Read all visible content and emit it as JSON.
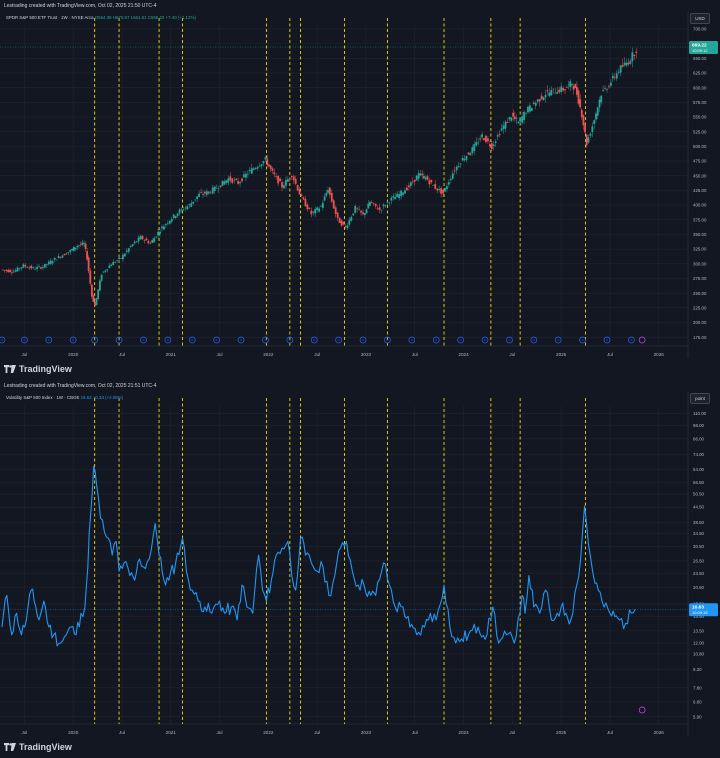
{
  "top_panel": {
    "header": "Lestrading created with TradingView.com, Oct 02, 2025 21:50 UTC-4",
    "legend": {
      "name": "SPDR S&P 500 ETF Trust · 1W · NYSE Arca",
      "ohlc": "O664.36 H670.57 L661.61 C669.22 +7.40 (+1.12%)"
    },
    "currency": "USD",
    "price_tag": "669.22",
    "price_time": "10:09:12"
  },
  "bottom_panel": {
    "header": "Lestrading created with TradingView.com, Oct 02, 2025 21:51 UTC-4",
    "legend": {
      "name": "Volatility S&P 500 Index · 1W · CBOE",
      "ohlc": "16.63 +0.34 (+2.09%)"
    },
    "unit": "point",
    "price_tag": "16.63",
    "price_time": "10:09:16"
  },
  "brand": "TradingView",
  "colors": {
    "up": "#26a69a",
    "down": "#ef5350",
    "vix": "#2196f3",
    "marker": "#f5d90a",
    "bg": "#131722"
  },
  "chart_data": [
    {
      "type": "candlestick",
      "title": "SPDR S&P 500 ETF Trust · 1W · NYSE Arca",
      "x_tick_labels": [
        "Jul",
        "2020",
        "Jul",
        "2021",
        "Jul",
        "2022",
        "Jul",
        "2023",
        "Jul",
        "2024",
        "Jul",
        "2025",
        "Jul",
        "2026"
      ],
      "x_range": [
        2019.25,
        2026.3
      ],
      "y_tick_labels": [
        "175.00",
        "200.00",
        "225.00",
        "250.00",
        "275.00",
        "300.00",
        "325.00",
        "350.00",
        "375.00",
        "400.00",
        "425.00",
        "450.00",
        "475.00",
        "500.00",
        "525.00",
        "550.00",
        "575.00",
        "600.00",
        "625.00",
        "650.00",
        "675.00",
        "700.00"
      ],
      "y_range": [
        160,
        705
      ],
      "series": [
        {
          "points": [
            [
              2019.27,
              290
            ],
            [
              2019.4,
              287
            ],
            [
              2019.5,
              297
            ],
            [
              2019.6,
              292
            ],
            [
              2019.7,
              295
            ],
            [
              2019.8,
              306
            ],
            [
              2019.9,
              315
            ],
            [
              2019.98,
              322
            ],
            [
              2020.05,
              331
            ],
            [
              2020.12,
              334
            ],
            [
              2020.15,
              310
            ],
            [
              2020.2,
              245
            ],
            [
              2020.23,
              228
            ],
            [
              2020.3,
              283
            ],
            [
              2020.4,
              300
            ],
            [
              2020.5,
              310
            ],
            [
              2020.6,
              330
            ],
            [
              2020.7,
              345
            ],
            [
              2020.8,
              335
            ],
            [
              2020.9,
              358
            ],
            [
              2020.98,
              372
            ],
            [
              2021.1,
              390
            ],
            [
              2021.2,
              400
            ],
            [
              2021.3,
              418
            ],
            [
              2021.4,
              422
            ],
            [
              2021.5,
              432
            ],
            [
              2021.6,
              445
            ],
            [
              2021.7,
              438
            ],
            [
              2021.8,
              455
            ],
            [
              2021.9,
              468
            ],
            [
              2021.98,
              477
            ],
            [
              2022.05,
              455
            ],
            [
              2022.15,
              432
            ],
            [
              2022.25,
              452
            ],
            [
              2022.35,
              412
            ],
            [
              2022.45,
              385
            ],
            [
              2022.55,
              398
            ],
            [
              2022.62,
              428
            ],
            [
              2022.72,
              375
            ],
            [
              2022.8,
              362
            ],
            [
              2022.9,
              395
            ],
            [
              2022.98,
              383
            ],
            [
              2023.05,
              405
            ],
            [
              2023.15,
              392
            ],
            [
              2023.25,
              408
            ],
            [
              2023.35,
              418
            ],
            [
              2023.45,
              432
            ],
            [
              2023.55,
              452
            ],
            [
              2023.62,
              446
            ],
            [
              2023.72,
              430
            ],
            [
              2023.8,
              420
            ],
            [
              2023.9,
              455
            ],
            [
              2023.98,
              475
            ],
            [
              2024.1,
              495
            ],
            [
              2024.2,
              518
            ],
            [
              2024.3,
              500
            ],
            [
              2024.4,
              530
            ],
            [
              2024.5,
              552
            ],
            [
              2024.57,
              540
            ],
            [
              2024.65,
              560
            ],
            [
              2024.75,
              575
            ],
            [
              2024.85,
              590
            ],
            [
              2024.95,
              595
            ],
            [
              2025.05,
              598
            ],
            [
              2025.12,
              608
            ],
            [
              2025.17,
              590
            ],
            [
              2025.22,
              555
            ],
            [
              2025.27,
              505
            ],
            [
              2025.33,
              535
            ],
            [
              2025.42,
              590
            ],
            [
              2025.5,
              605
            ],
            [
              2025.6,
              630
            ],
            [
              2025.7,
              645
            ],
            [
              2025.78,
              665
            ],
            [
              2025.76,
              669.22
            ]
          ]
        }
      ],
      "event_markers": [
        2020.22,
        2020.47,
        2020.88,
        2021.12,
        2021.98,
        2022.22,
        2022.33,
        2022.78,
        2023.22,
        2023.8,
        2024.28,
        2024.58,
        2025.25
      ],
      "last_value": 669.22
    },
    {
      "type": "line",
      "title": "Volatility S&P 500 Index · 1W · CBOE",
      "x_tick_labels": [
        "Jul",
        "2020",
        "Jul",
        "2021",
        "Jul",
        "2022",
        "Jul",
        "2023",
        "Jul",
        "2024",
        "Jul",
        "2025",
        "Jul",
        "2026"
      ],
      "x_range": [
        2019.25,
        2026.3
      ],
      "y_tick_labels": [
        "5.90",
        "6.80",
        "7.80",
        "9.30",
        "10.80",
        "12.00",
        "13.50",
        "15.50",
        "17.50",
        "20.50",
        "23.50",
        "26.50",
        "30.50",
        "34.50",
        "38.50",
        "44.50",
        "50.50",
        "56.50",
        "64.00",
        "74.00",
        "86.00",
        "98.00",
        "110.00"
      ],
      "y_scale": "log",
      "y_range": [
        5.5,
        118
      ],
      "series": [
        {
          "name": "VIX",
          "points": [
            [
              2019.27,
              14
            ],
            [
              2019.32,
              19
            ],
            [
              2019.37,
              13
            ],
            [
              2019.42,
              16
            ],
            [
              2019.47,
              13
            ],
            [
              2019.52,
              15
            ],
            [
              2019.57,
              20
            ],
            [
              2019.6,
              18
            ],
            [
              2019.65,
              15
            ],
            [
              2019.7,
              18
            ],
            [
              2019.75,
              14
            ],
            [
              2019.8,
              13
            ],
            [
              2019.87,
              12
            ],
            [
              2019.93,
              13
            ],
            [
              2019.98,
              14
            ],
            [
              2020.03,
              13
            ],
            [
              2020.08,
              16
            ],
            [
              2020.12,
              17
            ],
            [
              2020.15,
              25
            ],
            [
              2020.18,
              42
            ],
            [
              2020.21,
              66
            ],
            [
              2020.24,
              55
            ],
            [
              2020.28,
              40
            ],
            [
              2020.32,
              35
            ],
            [
              2020.36,
              33
            ],
            [
              2020.4,
              28
            ],
            [
              2020.44,
              32
            ],
            [
              2020.47,
              24
            ],
            [
              2020.52,
              26
            ],
            [
              2020.58,
              23
            ],
            [
              2020.63,
              22
            ],
            [
              2020.68,
              27
            ],
            [
              2020.72,
              25
            ],
            [
              2020.78,
              27
            ],
            [
              2020.84,
              38
            ],
            [
              2020.88,
              28
            ],
            [
              2020.93,
              22
            ],
            [
              2020.98,
              22
            ],
            [
              2021.05,
              26
            ],
            [
              2021.12,
              33
            ],
            [
              2021.16,
              24
            ],
            [
              2021.22,
              20
            ],
            [
              2021.28,
              18
            ],
            [
              2021.35,
              17
            ],
            [
              2021.42,
              16
            ],
            [
              2021.5,
              18
            ],
            [
              2021.55,
              16
            ],
            [
              2021.62,
              17
            ],
            [
              2021.68,
              15
            ],
            [
              2021.73,
              21
            ],
            [
              2021.78,
              17
            ],
            [
              2021.84,
              16
            ],
            [
              2021.9,
              28
            ],
            [
              2021.94,
              20
            ],
            [
              2021.98,
              18
            ],
            [
              2022.03,
              22
            ],
            [
              2022.08,
              28
            ],
            [
              2022.14,
              30
            ],
            [
              2022.2,
              32
            ],
            [
              2022.24,
              23
            ],
            [
              2022.28,
              20
            ],
            [
              2022.33,
              33
            ],
            [
              2022.38,
              28
            ],
            [
              2022.44,
              26
            ],
            [
              2022.5,
              24
            ],
            [
              2022.56,
              25
            ],
            [
              2022.62,
              19
            ],
            [
              2022.68,
              23
            ],
            [
              2022.74,
              30
            ],
            [
              2022.8,
              32
            ],
            [
              2022.86,
              24
            ],
            [
              2022.92,
              21
            ],
            [
              2022.98,
              21
            ],
            [
              2023.05,
              19
            ],
            [
              2023.1,
              19
            ],
            [
              2023.18,
              26
            ],
            [
              2023.24,
              21
            ],
            [
              2023.3,
              17
            ],
            [
              2023.38,
              17
            ],
            [
              2023.45,
              14
            ],
            [
              2023.52,
              13
            ],
            [
              2023.6,
              14
            ],
            [
              2023.66,
              16
            ],
            [
              2023.72,
              15
            ],
            [
              2023.8,
              21
            ],
            [
              2023.86,
              14
            ],
            [
              2023.92,
              12
            ],
            [
              2023.98,
              12.5
            ],
            [
              2024.05,
              13
            ],
            [
              2024.15,
              14
            ],
            [
              2024.24,
              13
            ],
            [
              2024.3,
              17
            ],
            [
              2024.36,
              12
            ],
            [
              2024.44,
              13
            ],
            [
              2024.52,
              12
            ],
            [
              2024.6,
              19
            ],
            [
              2024.63,
              16
            ],
            [
              2024.67,
              23
            ],
            [
              2024.72,
              17
            ],
            [
              2024.78,
              16
            ],
            [
              2024.84,
              20
            ],
            [
              2024.9,
              15
            ],
            [
              2024.96,
              16
            ],
            [
              2025.0,
              17
            ],
            [
              2025.05,
              16
            ],
            [
              2025.1,
              15
            ],
            [
              2025.16,
              21
            ],
            [
              2025.2,
              27
            ],
            [
              2025.24,
              45
            ],
            [
              2025.28,
              31
            ],
            [
              2025.33,
              23
            ],
            [
              2025.38,
              20
            ],
            [
              2025.44,
              17
            ],
            [
              2025.5,
              16
            ],
            [
              2025.55,
              15.5
            ],
            [
              2025.6,
              15
            ],
            [
              2025.66,
              14.5
            ],
            [
              2025.72,
              16
            ],
            [
              2025.76,
              16.63
            ]
          ]
        }
      ],
      "event_markers": [
        2020.22,
        2020.47,
        2020.88,
        2021.12,
        2021.98,
        2022.22,
        2022.33,
        2022.78,
        2023.22,
        2023.8,
        2024.28,
        2024.58,
        2025.25
      ],
      "last_value": 16.63
    }
  ]
}
